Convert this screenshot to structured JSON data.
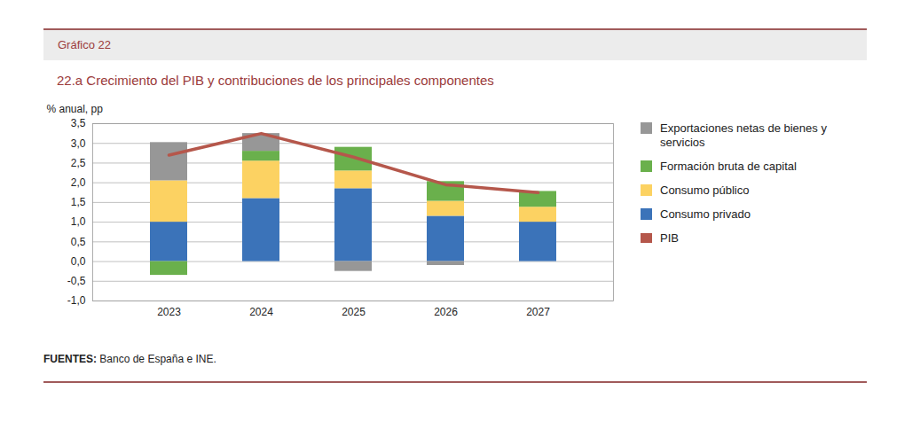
{
  "chart_data": {
    "type": "bar",
    "figure_label": "Gráfico 22",
    "title": "22.a Crecimiento del PIB y contribuciones de los principales componentes",
    "y_label": "% anual, pp",
    "source": "FUENTES: Banco de España e INE.",
    "categories": [
      "2023",
      "2024",
      "2025",
      "2026",
      "2027"
    ],
    "stacked": true,
    "grid": true,
    "legend": "right",
    "ylim": [
      -1,
      3.5
    ],
    "yticks": [
      {
        "value": -1,
        "label": "-1,0"
      },
      {
        "value": -0.5,
        "label": "-0,5"
      },
      {
        "value": 0,
        "label": "0,0"
      },
      {
        "value": 0.5,
        "label": "0,5"
      },
      {
        "value": 1,
        "label": "1,0"
      },
      {
        "value": 1.5,
        "label": "1,5"
      },
      {
        "value": 2,
        "label": "2,0"
      },
      {
        "value": 2.5,
        "label": "2,5"
      },
      {
        "value": 3,
        "label": "3,0"
      },
      {
        "value": 3.5,
        "label": "3,5"
      }
    ],
    "series": [
      {
        "name": "Exportaciones netas de bienes y servicios",
        "type": "bar",
        "color": "#979797",
        "values": [
          0.97,
          0.45,
          -0.25,
          -0.1,
          0.0
        ]
      },
      {
        "name": "Formación bruta de capital",
        "type": "bar",
        "color": "#6ab04c",
        "values": [
          -0.35,
          0.25,
          0.6,
          0.5,
          0.4
        ]
      },
      {
        "name": "Consumo público",
        "type": "bar",
        "color": "#fcd262",
        "values": [
          1.05,
          0.95,
          0.45,
          0.38,
          0.38
        ]
      },
      {
        "name": "Consumo privado",
        "type": "bar",
        "color": "#3b73b9",
        "values": [
          1.0,
          1.6,
          1.85,
          1.15,
          1.0
        ]
      },
      {
        "name": "PIB",
        "type": "line",
        "color": "#b5574b",
        "values": [
          2.7,
          3.25,
          2.65,
          1.95,
          1.75
        ]
      }
    ]
  }
}
